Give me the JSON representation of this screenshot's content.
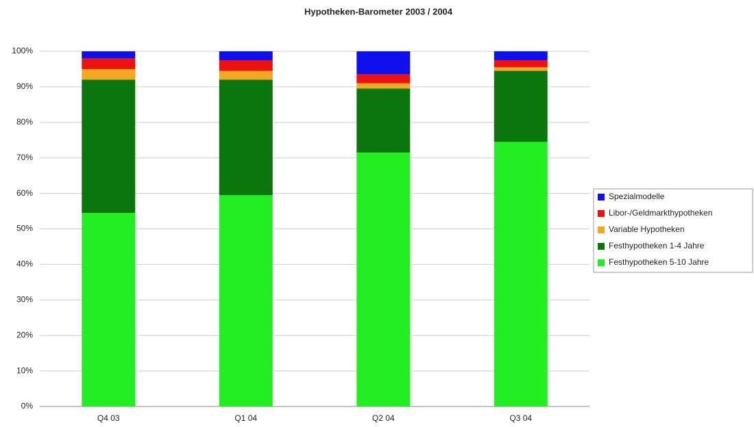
{
  "chart_data": {
    "type": "stacked_bar",
    "title": "Hypotheken-Barometer 2003 / 2004",
    "categories": [
      "Q4 03",
      "Q1 04",
      "Q2 04",
      "Q3 04"
    ],
    "series": [
      {
        "name": "Festhypotheken 5-10 Jahre",
        "color": "#22ee22",
        "values": [
          54.5,
          59.5,
          71.5,
          74.5
        ]
      },
      {
        "name": "Festhypotheken 1-4 Jahre",
        "color": "#0b760b",
        "values": [
          37.5,
          32.5,
          18,
          20
        ]
      },
      {
        "name": "Variable Hypotheken",
        "color": "#f5a623",
        "values": [
          3,
          2.5,
          1.5,
          1
        ]
      },
      {
        "name": "Libor-/Geldmarkthypotheken",
        "color": "#ee1111",
        "values": [
          3,
          3,
          2.5,
          2
        ]
      },
      {
        "name": "Spezialmodelle",
        "color": "#1010ee",
        "values": [
          2,
          2.5,
          6.5,
          2.5
        ]
      }
    ],
    "ylim": [
      0,
      100
    ],
    "yticks": [
      {
        "value": 0,
        "label": "0%"
      },
      {
        "value": 10,
        "label": "10%"
      },
      {
        "value": 20,
        "label": "20%"
      },
      {
        "value": 30,
        "label": "30%"
      },
      {
        "value": 40,
        "label": "40%"
      },
      {
        "value": 50,
        "label": "50%"
      },
      {
        "value": 60,
        "label": "60%"
      },
      {
        "value": 70,
        "label": "70%"
      },
      {
        "value": 80,
        "label": "80%"
      },
      {
        "value": 90,
        "label": "90%"
      },
      {
        "value": 100,
        "label": "100%"
      }
    ],
    "grid": true,
    "legend": "right"
  }
}
